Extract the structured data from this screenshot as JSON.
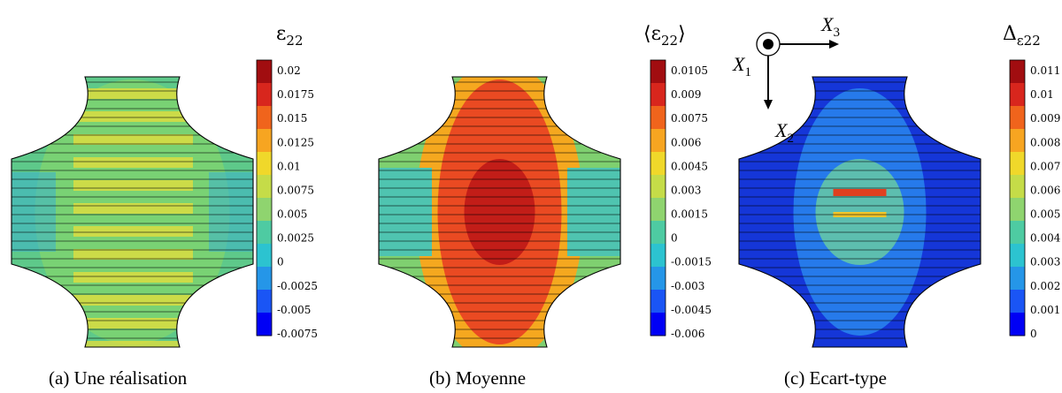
{
  "panels": [
    {
      "title": "ε22",
      "title_main": "ε",
      "title_sub": "22",
      "caption": "(a) Une réalisation",
      "ticks": [
        "0.02",
        "0.0175",
        "0.015",
        "0.0125",
        "0.01",
        "0.0075",
        "0.005",
        "0.0025",
        "0",
        "-0.0025",
        "-0.005",
        "-0.0075"
      ],
      "dominant_colors": [
        "#5ec98a",
        "#9fd75a",
        "#e6e044"
      ]
    },
    {
      "title": "⟨ε22⟩",
      "title_main": "⟨ε",
      "title_sub": "22",
      "title_end": "⟩",
      "caption": "(b) Moyenne",
      "ticks": [
        "0.0105",
        "0.009",
        "0.0075",
        "0.006",
        "0.0045",
        "0.003",
        "0.0015",
        "0",
        "-0.0015",
        "-0.003",
        "-0.0045",
        "-0.006"
      ],
      "dominant_colors": [
        "#e4322a",
        "#f79a1e",
        "#4fc4b0"
      ]
    },
    {
      "title": "Δε22",
      "title_main": "Δ",
      "title_sub": "ε22",
      "caption": "(c) Ecart-type",
      "ticks": [
        "0.011",
        "0.01",
        "0.009",
        "0.008",
        "0.007",
        "0.006",
        "0.005",
        "0.004",
        "0.003",
        "0.002",
        "0.001",
        "0"
      ],
      "dominant_colors": [
        "#1a3fe0",
        "#2b8cf0",
        "#6bd0a0"
      ]
    }
  ],
  "axes_triad": {
    "x1": "X",
    "x1_sub": "1",
    "x2": "X",
    "x2_sub": "2",
    "x3": "X",
    "x3_sub": "3"
  },
  "colormap": [
    "#0000f5",
    "#1a55f5",
    "#2596e8",
    "#2cc3d0",
    "#4ecba2",
    "#8fd46f",
    "#c5dc48",
    "#f0d82a",
    "#f7a521",
    "#f0641c",
    "#d8261d",
    "#a10d10"
  ]
}
